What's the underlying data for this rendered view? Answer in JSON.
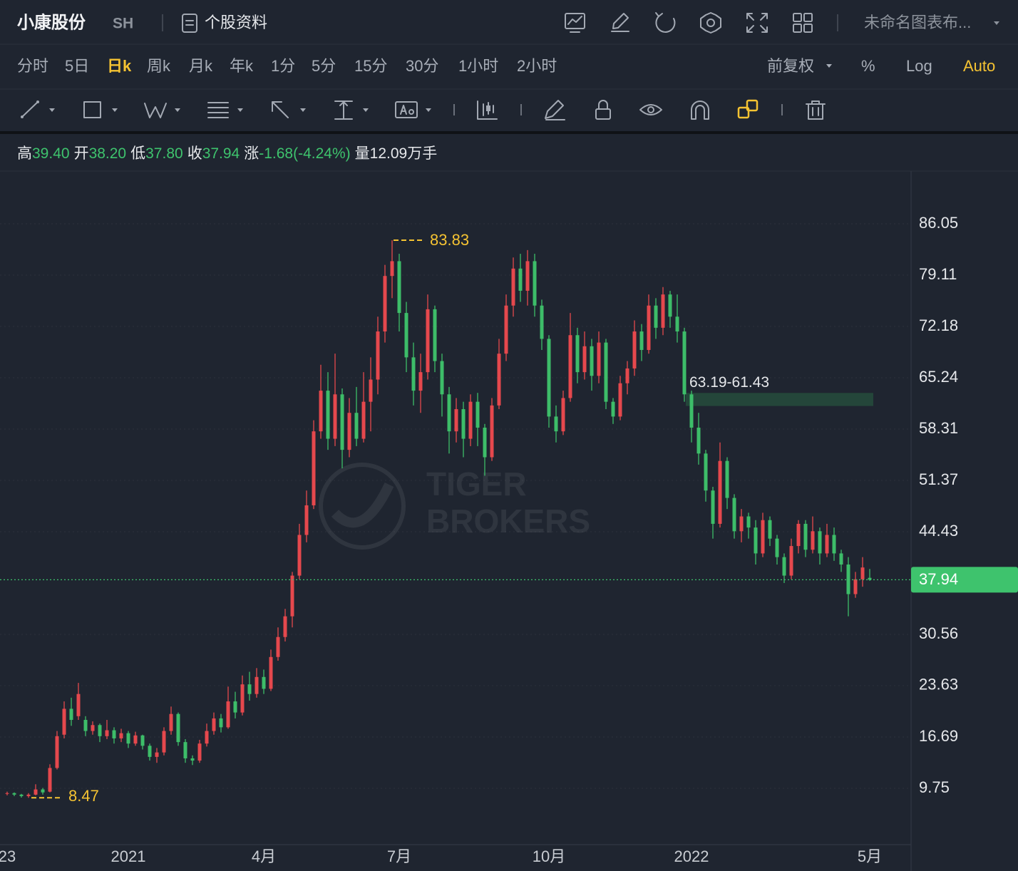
{
  "header": {
    "name": "小康股份",
    "exchange": "SH",
    "profile": "个股资料",
    "layout": "未命名图表布..."
  },
  "periods": [
    "分时",
    "5日",
    "日k",
    "周k",
    "月k",
    "年k",
    "1分",
    "5分",
    "15分",
    "30分",
    "1小时",
    "2小时"
  ],
  "active_period": 2,
  "options": [
    "前复权",
    "%",
    "Log",
    "Auto"
  ],
  "active_option": 3,
  "quote": {
    "high_label": "高",
    "high": "39.40",
    "open_label": "开",
    "open": "38.20",
    "low_label": "低",
    "low": "37.80",
    "close_label": "收",
    "close": "37.94",
    "change_label": "涨",
    "change": "-1.68(-4.24%)",
    "volume_label": "量",
    "volume": "12.09万手"
  },
  "watermark": [
    "TIGER",
    "BROKERS"
  ],
  "chart_data": {
    "type": "candlestick",
    "categories": [
      "23",
      null,
      null,
      null,
      null,
      null,
      null,
      null,
      null,
      null,
      null,
      null,
      null,
      null,
      null,
      null,
      null,
      "2021",
      null,
      null,
      null,
      null,
      null,
      null,
      null,
      null,
      null,
      null,
      null,
      null,
      null,
      null,
      null,
      null,
      null,
      null,
      "4月",
      null,
      null,
      null,
      null,
      null,
      null,
      null,
      null,
      null,
      null,
      null,
      null,
      null,
      null,
      null,
      null,
      null,
      null,
      "7月",
      null,
      null,
      null,
      null,
      null,
      null,
      null,
      null,
      null,
      null,
      null,
      null,
      null,
      null,
      null,
      null,
      null,
      null,
      null,
      null,
      "10月",
      null,
      null,
      null,
      null,
      null,
      null,
      null,
      null,
      null,
      null,
      null,
      null,
      null,
      null,
      null,
      null,
      null,
      null,
      null,
      "2022",
      null,
      null,
      null,
      null,
      null,
      null,
      null,
      null,
      null,
      null,
      null,
      null,
      null,
      null,
      null,
      null,
      null,
      null,
      null,
      null,
      null,
      null,
      null,
      null,
      "5月"
    ],
    "open": [
      9.0,
      9.1,
      8.9,
      8.7,
      8.9,
      9.6,
      9.3,
      12.5,
      17.0,
      20.5,
      19.5,
      19.0,
      17.5,
      18.3,
      16.8,
      17.6,
      16.5,
      17.2,
      15.8,
      16.9,
      15.5,
      14.0,
      14.6,
      17.5,
      19.8,
      16.0,
      13.8,
      13.5,
      15.8,
      17.5,
      19.2,
      18.0,
      21.5,
      20.0,
      23.8,
      22.5,
      24.8,
      23.2,
      27.5,
      30.2,
      33.0,
      38.5,
      44.0,
      48.0,
      58.0,
      63.5,
      57.0,
      63.0,
      55.5,
      60.5,
      57.0,
      62.0,
      65.0,
      71.5,
      79.0,
      81.0,
      74.0,
      68.0,
      63.5,
      66.0,
      74.5,
      67.5,
      63.0,
      58.0,
      61.0,
      57.0,
      62.0,
      58.5,
      54.5,
      61.5,
      68.5,
      75.0,
      80.0,
      77.0,
      81.0,
      75.0,
      70.5,
      60.0,
      58.0,
      62.5,
      71.0,
      66.0,
      69.5,
      65.5,
      70.0,
      62.0,
      60.0,
      64.5,
      66.5,
      71.5,
      69.0,
      75.0,
      72.0,
      76.5,
      73.5,
      71.5,
      63.0,
      58.5,
      55.0,
      50.0,
      45.5,
      54.0,
      49.0,
      44.5,
      46.5,
      45.0,
      41.5,
      46.0,
      43.5,
      41.0,
      38.5,
      42.5,
      45.5,
      42.0,
      44.5,
      41.5,
      44.0,
      41.5,
      40.0,
      36.0,
      38.0,
      38.2
    ],
    "high": [
      9.3,
      9.2,
      9.0,
      9.1,
      10.3,
      9.8,
      13.0,
      17.5,
      21.5,
      22.0,
      24.0,
      19.5,
      18.8,
      18.5,
      19.0,
      18.0,
      17.8,
      17.5,
      17.4,
      17.0,
      15.8,
      15.2,
      18.0,
      20.8,
      20.0,
      16.4,
      14.2,
      16.3,
      18.5,
      20.0,
      19.8,
      23.5,
      22.8,
      25.0,
      25.5,
      26.0,
      25.8,
      28.5,
      31.5,
      34.0,
      39.0,
      45.5,
      50.0,
      59.5,
      67.0,
      66.0,
      68.5,
      63.8,
      62.5,
      64.0,
      66.0,
      68.0,
      73.5,
      80.5,
      83.83,
      82.0,
      75.5,
      70.0,
      68.5,
      76.5,
      75.0,
      68.5,
      64.0,
      62.5,
      62.0,
      63.0,
      63.2,
      59.0,
      62.5,
      70.5,
      76.5,
      81.5,
      82.0,
      82.5,
      82.0,
      75.8,
      71.0,
      61.5,
      63.5,
      74.0,
      72.0,
      71.5,
      70.5,
      71.5,
      70.5,
      62.5,
      65.5,
      67.5,
      73.0,
      72.5,
      76.5,
      76.0,
      77.5,
      77.0,
      76.5,
      72.0,
      63.5,
      60.5,
      55.5,
      50.5,
      56.5,
      54.5,
      49.5,
      47.5,
      47.0,
      46.0,
      47.0,
      46.5,
      44.0,
      41.5,
      43.5,
      46.0,
      46.0,
      46.5,
      45.0,
      45.5,
      45.0,
      42.0,
      41.0,
      39.0,
      41.0,
      39.4
    ],
    "low": [
      8.8,
      8.7,
      8.5,
      8.47,
      8.8,
      8.9,
      9.2,
      12.3,
      16.5,
      18.2,
      19.0,
      16.8,
      17.0,
      16.0,
      16.4,
      15.8,
      16.0,
      15.2,
      15.5,
      15.0,
      13.5,
      13.2,
      14.2,
      17.0,
      15.5,
      13.2,
      12.9,
      13.2,
      15.4,
      17.0,
      17.3,
      17.8,
      19.2,
      19.6,
      21.6,
      22.0,
      22.5,
      22.9,
      27.0,
      29.6,
      31.5,
      38.0,
      43.0,
      47.5,
      57.0,
      55.5,
      56.0,
      53.0,
      54.5,
      56.0,
      56.5,
      58.0,
      63.0,
      70.0,
      76.0,
      71.5,
      66.0,
      61.5,
      60.5,
      65.0,
      66.0,
      60.0,
      55.0,
      56.5,
      54.5,
      56.0,
      56.0,
      52.0,
      54.0,
      61.0,
      67.5,
      73.5,
      75.5,
      75.0,
      73.5,
      69.0,
      58.5,
      56.5,
      57.5,
      62.0,
      64.5,
      65.0,
      63.5,
      64.5,
      61.0,
      59.0,
      59.5,
      63.0,
      65.5,
      67.5,
      68.5,
      70.5,
      71.0,
      72.0,
      70.0,
      62.0,
      56.5,
      53.5,
      48.5,
      43.5,
      45.0,
      47.5,
      43.5,
      43.0,
      43.5,
      40.0,
      41.0,
      42.5,
      40.0,
      37.5,
      38.0,
      41.5,
      41.0,
      41.5,
      40.0,
      41.0,
      40.5,
      39.0,
      33.0,
      35.5,
      37.0,
      37.8
    ],
    "close": [
      9.1,
      8.9,
      8.7,
      8.9,
      9.6,
      9.2,
      12.5,
      16.8,
      20.5,
      19.0,
      22.5,
      17.5,
      18.3,
      16.8,
      17.6,
      16.5,
      17.2,
      15.8,
      16.9,
      15.5,
      14.0,
      14.6,
      17.5,
      19.8,
      16.0,
      13.8,
      13.5,
      15.8,
      17.5,
      19.2,
      18.0,
      21.5,
      20.0,
      23.8,
      22.5,
      24.8,
      23.2,
      27.5,
      30.2,
      33.0,
      38.5,
      44.0,
      48.0,
      58.0,
      63.5,
      57.0,
      63.0,
      55.5,
      60.5,
      57.0,
      62.0,
      65.0,
      71.5,
      79.0,
      81.0,
      74.0,
      68.0,
      63.5,
      66.0,
      74.5,
      67.5,
      63.0,
      58.0,
      61.0,
      57.0,
      62.0,
      58.5,
      54.5,
      61.5,
      68.5,
      75.0,
      80.0,
      77.0,
      81.0,
      75.0,
      70.5,
      60.0,
      58.0,
      62.5,
      71.0,
      66.0,
      69.5,
      65.5,
      70.0,
      62.0,
      60.0,
      64.5,
      66.5,
      71.5,
      69.0,
      75.0,
      72.0,
      76.5,
      73.5,
      71.5,
      63.0,
      58.5,
      55.0,
      50.0,
      45.5,
      54.0,
      49.0,
      44.5,
      46.5,
      45.0,
      41.5,
      46.0,
      43.5,
      41.0,
      38.5,
      42.5,
      45.5,
      42.0,
      44.5,
      41.5,
      44.0,
      41.5,
      40.0,
      36.0,
      38.0,
      39.6,
      37.94
    ],
    "up_color": "#e5484d",
    "down_color": "#3dbd69",
    "ylim": [
      2.14,
      93.18
    ],
    "yticks": [
      9.75,
      16.69,
      23.63,
      30.56,
      44.43,
      51.37,
      58.31,
      65.24,
      72.18,
      79.11,
      86.05
    ],
    "grid": true,
    "max_label": 83.83,
    "min_label": 8.47,
    "range_box": {
      "label": "63.19-61.43",
      "top": 63.19,
      "bottom": 61.43,
      "color": "#24463a"
    }
  }
}
